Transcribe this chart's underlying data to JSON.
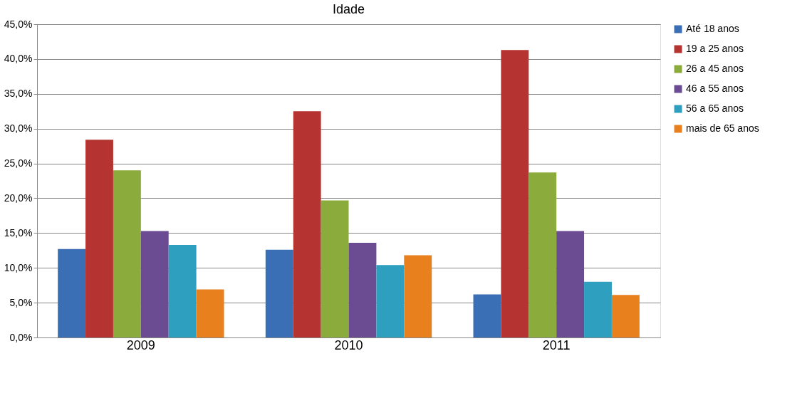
{
  "chart_data": {
    "type": "bar",
    "title": "Idade",
    "categories": [
      "2009",
      "2010",
      "2011"
    ],
    "series": [
      {
        "name": "Até 18 anos",
        "color": "#3a6fb5",
        "values": [
          12.7,
          12.6,
          6.2
        ]
      },
      {
        "name": "19 a 25 anos",
        "color": "#b53330",
        "values": [
          28.4,
          32.5,
          41.3
        ]
      },
      {
        "name": "26 a 45 anos",
        "color": "#8bab3c",
        "values": [
          24.0,
          19.7,
          23.7
        ]
      },
      {
        "name": "46 a 55 anos",
        "color": "#6b4c93",
        "values": [
          15.3,
          13.6,
          15.3
        ]
      },
      {
        "name": "56 a 65 anos",
        "color": "#2f9fbf",
        "values": [
          13.3,
          10.4,
          8.0
        ]
      },
      {
        "name": "mais de 65 anos",
        "color": "#e8801e",
        "values": [
          6.9,
          11.8,
          6.1
        ]
      }
    ],
    "ylim": [
      0,
      45
    ],
    "yticks": [
      {
        "value": 0,
        "label": "0,0%"
      },
      {
        "value": 5,
        "label": "5,0%"
      },
      {
        "value": 10,
        "label": "10,0%"
      },
      {
        "value": 15,
        "label": "15,0%"
      },
      {
        "value": 20,
        "label": "20,0%"
      },
      {
        "value": 25,
        "label": "25,0%"
      },
      {
        "value": 30,
        "label": "30,0%"
      },
      {
        "value": 35,
        "label": "35,0%"
      },
      {
        "value": 40,
        "label": "40,0%"
      },
      {
        "value": 45,
        "label": "45,0%"
      }
    ],
    "grid": "y",
    "legend": "right"
  }
}
